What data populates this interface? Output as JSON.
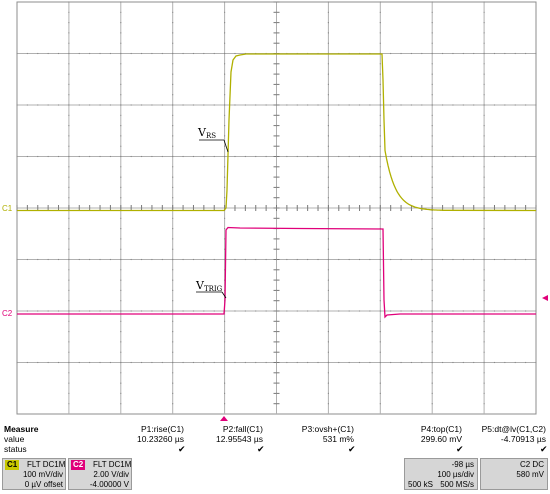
{
  "screen": {
    "ch1_marker": "C1",
    "ch2_marker": "C2",
    "ch1_color": "#b0b000",
    "ch2_color": "#e0007a",
    "labels": {
      "vrs_main": "V",
      "vrs_sub": "RS",
      "vtrig_main": "V",
      "vtrig_sub": "TRIG"
    }
  },
  "measure": {
    "header": "Measure",
    "row_value": "value",
    "row_status": "status",
    "columns": [
      {
        "name": "P1:rise(C1)",
        "value": "10.23260 µs"
      },
      {
        "name": "P2:fall(C1)",
        "value": "12.95543 µs"
      },
      {
        "name": "P3:ovsh+(C1)",
        "value": "531 m%"
      },
      {
        "name": "P4:top(C1)",
        "value": "299.60 mV"
      },
      {
        "name": "P5:dt@lv(C1,C2)",
        "value": "-4.70913 µs"
      }
    ],
    "check": "✔"
  },
  "status_bar": {
    "c1": {
      "badge": "C1",
      "mode": "FLT  DC1M",
      "scale": "100 mV/div",
      "offset": "0 µV offset"
    },
    "c2": {
      "badge": "C2",
      "mode": "FLT  DC1M",
      "scale": "2.00 V/div",
      "offset": "-4.00000 V"
    },
    "timebase": {
      "delay": "-98 µs",
      "scale": "100 µs/div",
      "points": "500 kS",
      "rate": "500 MS/s"
    },
    "trigger": {
      "source": "C2  DC",
      "level": "580 mV"
    }
  }
}
